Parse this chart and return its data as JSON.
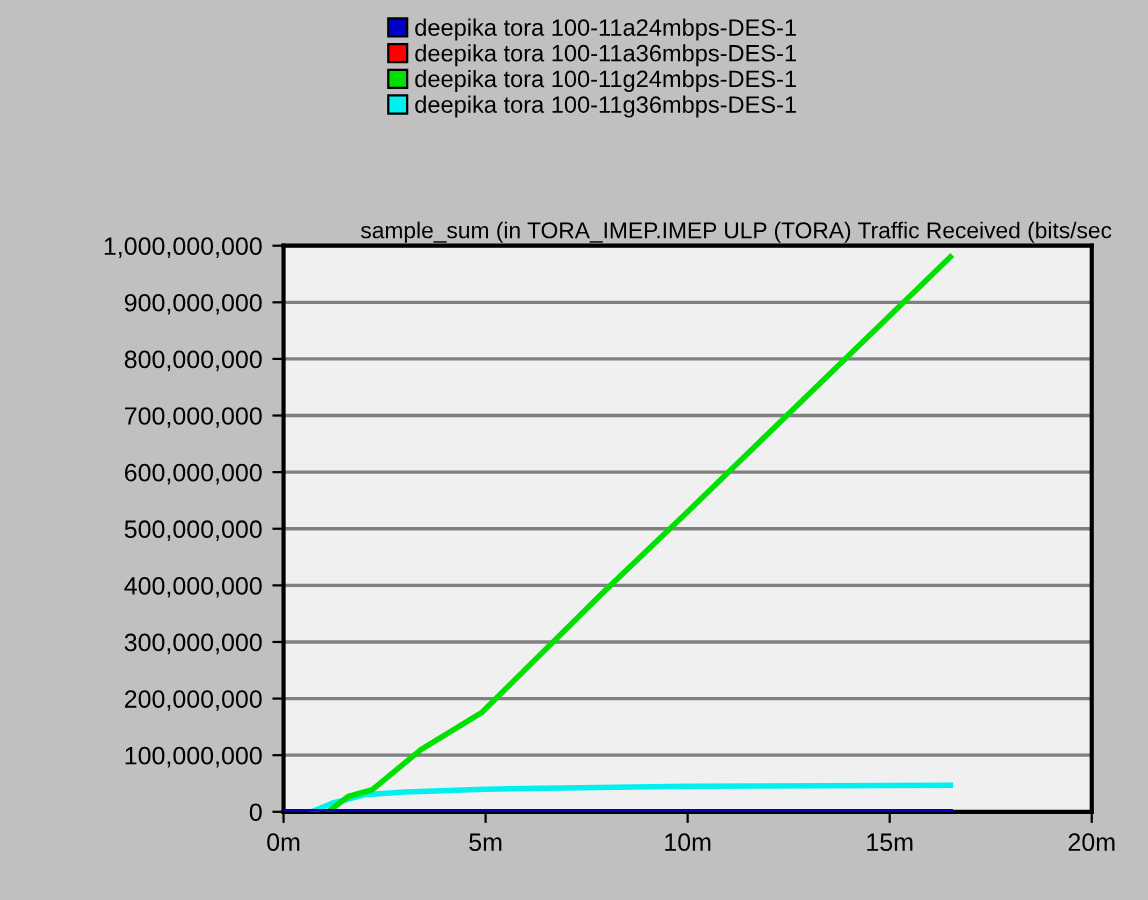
{
  "chart_data": {
    "type": "line",
    "title": "sample_sum (in TORA_IMEP.IMEP ULP (TORA) Traffic Received (bits/sec",
    "series": [
      {
        "name": "deepika tora 100-11a24mbps-DES-1",
        "color": "#0000c8",
        "x": [
          0,
          16.5
        ],
        "values": [
          0,
          0
        ]
      },
      {
        "name": "deepika tora 100-11a36mbps-DES-1",
        "color": "#ff0000"
      },
      {
        "name": "deepika tora 100-11g24mbps-DES-1",
        "color": "#00e000",
        "x": [
          1.1,
          1.6,
          2.2,
          3.4,
          4.9,
          7.9,
          10,
          16.5
        ],
        "values": [
          0,
          27000000,
          39000000,
          110000000,
          175000000,
          387000000,
          530000000,
          980000000
        ]
      },
      {
        "name": "deepika tora 100-11g36mbps-DES-1",
        "color": "#00f0f0",
        "x": [
          0.7,
          1.2,
          2,
          3,
          5,
          10,
          16.5
        ],
        "values": [
          0,
          15000000,
          30000000,
          35000000,
          40000000,
          45000000,
          47000000
        ]
      }
    ],
    "xlim": [
      0,
      20
    ],
    "xticks": [
      {
        "value": 0,
        "label": "0m"
      },
      {
        "value": 5,
        "label": "5m"
      },
      {
        "value": 10,
        "label": "10m"
      },
      {
        "value": 15,
        "label": "15m"
      },
      {
        "value": 20,
        "label": "20m"
      }
    ],
    "ylim": [
      0,
      1000000000
    ],
    "yticks": [
      {
        "value": 0,
        "label": "0"
      },
      {
        "value": 100000000,
        "label": "100,000,000"
      },
      {
        "value": 200000000,
        "label": "200,000,000"
      },
      {
        "value": 300000000,
        "label": "300,000,000"
      },
      {
        "value": 400000000,
        "label": "400,000,000"
      },
      {
        "value": 500000000,
        "label": "500,000,000"
      },
      {
        "value": 600000000,
        "label": "600,000,000"
      },
      {
        "value": 700000000,
        "label": "700,000,000"
      },
      {
        "value": 800000000,
        "label": "800,000,000"
      },
      {
        "value": 900000000,
        "label": "900,000,000"
      },
      {
        "value": 1000000000,
        "label": "1,000,000,000"
      }
    ],
    "grid": "y",
    "legend": "top"
  }
}
